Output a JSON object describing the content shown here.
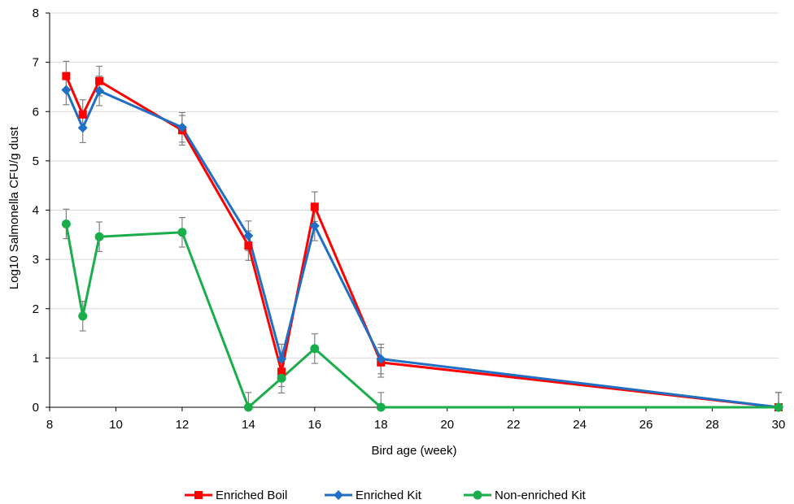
{
  "chart_data": {
    "type": "line",
    "title": "",
    "xlabel": "Bird age (week)",
    "ylabel": "Log10 Salmonella CFU/g dust",
    "xlim": [
      8,
      30
    ],
    "ylim": [
      0,
      8
    ],
    "xticks": [
      8,
      10,
      12,
      14,
      16,
      18,
      20,
      22,
      24,
      26,
      28,
      30
    ],
    "yticks": [
      0,
      1,
      2,
      3,
      4,
      5,
      6,
      7,
      8
    ],
    "grid": "horizontal",
    "legend_position": "bottom",
    "series": [
      {
        "name": "Enriched Boil",
        "color": "#ff0000",
        "marker": "square",
        "x": [
          8.5,
          9,
          9.5,
          12,
          14,
          15,
          16,
          18,
          30
        ],
        "y": [
          6.72,
          5.94,
          6.62,
          5.62,
          3.28,
          0.72,
          4.07,
          0.91,
          0
        ],
        "error": [
          0.3,
          0.3,
          0.3,
          0.3,
          0.3,
          0.3,
          0.3,
          0.3,
          0.3
        ]
      },
      {
        "name": "Enriched Kit",
        "color": "#1f6fc5",
        "marker": "diamond",
        "x": [
          8.5,
          9,
          9.5,
          12,
          14,
          15,
          16,
          18,
          30
        ],
        "y": [
          6.44,
          5.67,
          6.42,
          5.68,
          3.48,
          0.98,
          3.68,
          0.98,
          0
        ],
        "error": [
          0.3,
          0.3,
          0.3,
          0.3,
          0.3,
          0.3,
          0.3,
          0.3,
          0.3
        ]
      },
      {
        "name": "Non-enriched Kit",
        "color": "#1aad4b",
        "marker": "circle",
        "x": [
          8.5,
          9,
          9.5,
          12,
          14,
          15,
          16,
          18,
          30
        ],
        "y": [
          3.72,
          1.85,
          3.46,
          3.55,
          0,
          0.59,
          1.19,
          0,
          0
        ],
        "error": [
          0.3,
          0.3,
          0.3,
          0.3,
          0.3,
          0.3,
          0.3,
          0.3,
          0.3
        ]
      }
    ]
  }
}
